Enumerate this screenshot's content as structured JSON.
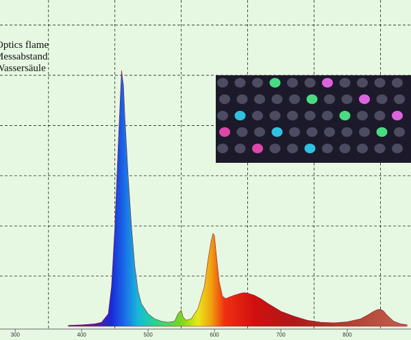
{
  "chart_data": {
    "type": "area",
    "annotations": [
      "Optics flame",
      "Messabstand",
      "Wassersäule"
    ],
    "x": [
      380,
      400,
      420,
      430,
      440,
      445,
      450,
      455,
      458,
      460,
      463,
      465,
      470,
      475,
      480,
      485,
      490,
      500,
      510,
      520,
      530,
      540,
      545,
      550,
      553,
      557,
      565,
      575,
      585,
      590,
      595,
      598,
      600,
      603,
      607,
      612,
      617,
      622,
      630,
      640,
      645,
      650,
      660,
      670,
      680,
      690,
      700,
      720,
      740,
      760,
      780,
      800,
      820,
      830,
      840,
      845,
      850,
      855,
      860,
      870,
      880,
      890
    ],
    "values": [
      0.02,
      0.03,
      0.05,
      0.08,
      0.25,
      0.8,
      2.0,
      3.6,
      4.5,
      5.1,
      4.8,
      4.2,
      3.0,
      2.0,
      1.2,
      0.7,
      0.45,
      0.25,
      0.15,
      0.1,
      0.08,
      0.1,
      0.25,
      0.32,
      0.18,
      0.12,
      0.15,
      0.35,
      0.8,
      1.3,
      1.7,
      1.85,
      1.8,
      1.4,
      0.9,
      0.6,
      0.55,
      0.58,
      0.62,
      0.66,
      0.67,
      0.66,
      0.62,
      0.55,
      0.46,
      0.38,
      0.3,
      0.2,
      0.12,
      0.08,
      0.07,
      0.09,
      0.15,
      0.22,
      0.3,
      0.33,
      0.34,
      0.3,
      0.22,
      0.1,
      0.05,
      0.03
    ],
    "color_stops": [
      {
        "x": 390,
        "color": "#5a1a8c"
      },
      {
        "x": 420,
        "color": "#5a1ab0"
      },
      {
        "x": 445,
        "color": "#1a2ad8"
      },
      {
        "x": 465,
        "color": "#1a6ee8"
      },
      {
        "x": 485,
        "color": "#18b8d8"
      },
      {
        "x": 510,
        "color": "#20d890"
      },
      {
        "x": 550,
        "color": "#78d820"
      },
      {
        "x": 575,
        "color": "#e8e818"
      },
      {
        "x": 595,
        "color": "#f0a010"
      },
      {
        "x": 615,
        "color": "#f03010"
      },
      {
        "x": 660,
        "color": "#d01010"
      },
      {
        "x": 720,
        "color": "#b01818"
      },
      {
        "x": 800,
        "color": "#b04030"
      },
      {
        "x": 870,
        "color": "#c05848"
      }
    ],
    "xlim": [
      277,
      896
    ],
    "xticks": [
      300,
      400,
      500,
      600,
      700,
      800
    ],
    "xgrid": [
      350,
      450,
      550,
      650,
      750,
      850
    ],
    "ylim": [
      0,
      6.5
    ],
    "ygrid": [
      1,
      2,
      3,
      4,
      5,
      6
    ],
    "grid": true
  }
}
